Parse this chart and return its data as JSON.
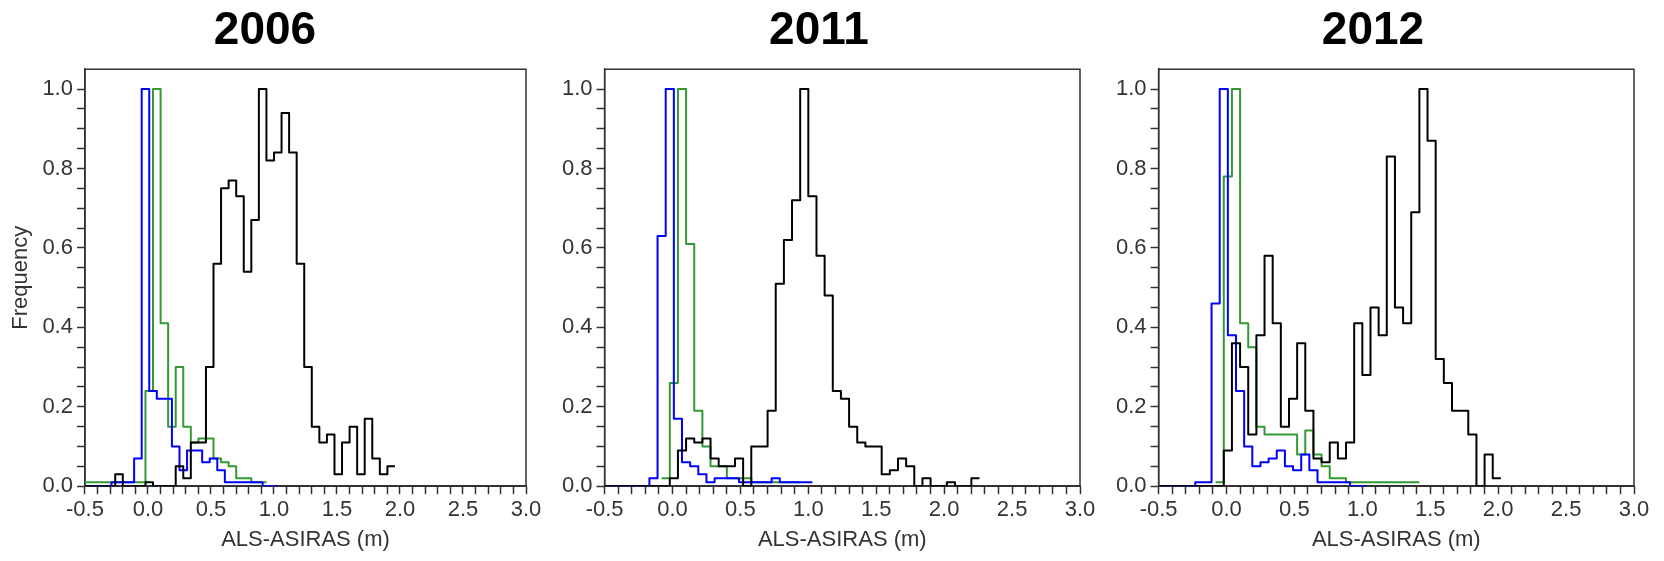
{
  "chart_data": [
    {
      "type": "histogram",
      "title": "2006",
      "xlabel": "ALS-ASIRAS (m)",
      "ylabel": "Frequency",
      "xlim": [
        -0.5,
        3.0
      ],
      "ylim": [
        0,
        1.05
      ],
      "xticks": [
        {
          "value": -0.5,
          "label": "-0.5"
        },
        {
          "value": -0.4,
          "label": null
        },
        {
          "value": -0.3,
          "label": null
        },
        {
          "value": -0.2,
          "label": null
        },
        {
          "value": -0.1,
          "label": null
        },
        {
          "value": 0,
          "label": "0.0"
        },
        {
          "value": 0.1,
          "label": null
        },
        {
          "value": 0.2,
          "label": null
        },
        {
          "value": 0.3,
          "label": null
        },
        {
          "value": 0.4,
          "label": null
        },
        {
          "value": 0.5,
          "label": "0.5"
        },
        {
          "value": 0.6,
          "label": null
        },
        {
          "value": 0.7,
          "label": null
        },
        {
          "value": 0.8,
          "label": null
        },
        {
          "value": 0.9,
          "label": null
        },
        {
          "value": 1,
          "label": "1.0"
        },
        {
          "value": 1.1,
          "label": null
        },
        {
          "value": 1.2,
          "label": null
        },
        {
          "value": 1.3,
          "label": null
        },
        {
          "value": 1.4,
          "label": null
        },
        {
          "value": 1.5,
          "label": "1.5"
        },
        {
          "value": 1.6,
          "label": null
        },
        {
          "value": 1.7,
          "label": null
        },
        {
          "value": 1.8,
          "label": null
        },
        {
          "value": 1.9,
          "label": null
        },
        {
          "value": 2,
          "label": "2.0"
        },
        {
          "value": 2.1,
          "label": null
        },
        {
          "value": 2.2,
          "label": null
        },
        {
          "value": 2.3,
          "label": null
        },
        {
          "value": 2.4,
          "label": null
        },
        {
          "value": 2.5,
          "label": "2.5"
        },
        {
          "value": 2.6,
          "label": null
        },
        {
          "value": 2.7,
          "label": null
        },
        {
          "value": 2.8,
          "label": null
        },
        {
          "value": 2.9,
          "label": null
        },
        {
          "value": 3,
          "label": "3.0"
        }
      ],
      "yticks": [
        {
          "value": 0,
          "label": "0.0"
        },
        {
          "value": 0.05,
          "label": null
        },
        {
          "value": 0.1,
          "label": null
        },
        {
          "value": 0.15,
          "label": null
        },
        {
          "value": 0.2,
          "label": "0.2"
        },
        {
          "value": 0.25,
          "label": null
        },
        {
          "value": 0.3,
          "label": null
        },
        {
          "value": 0.35,
          "label": null
        },
        {
          "value": 0.4,
          "label": "0.4"
        },
        {
          "value": 0.45,
          "label": null
        },
        {
          "value": 0.5,
          "label": null
        },
        {
          "value": 0.55,
          "label": null
        },
        {
          "value": 0.6,
          "label": "0.6"
        },
        {
          "value": 0.65,
          "label": null
        },
        {
          "value": 0.7,
          "label": null
        },
        {
          "value": 0.75,
          "label": null
        },
        {
          "value": 0.8,
          "label": "0.8"
        },
        {
          "value": 0.85,
          "label": null
        },
        {
          "value": 0.9,
          "label": null
        },
        {
          "value": 0.95,
          "label": null
        },
        {
          "value": 1,
          "label": "1.0"
        }
      ],
      "bins": [
        -0.5,
        -0.44,
        -0.38,
        -0.32,
        -0.26,
        -0.2,
        -0.14,
        -0.08,
        -0.02,
        0.04,
        0.1,
        0.16,
        0.22,
        0.28,
        0.34,
        0.4,
        0.46,
        0.52,
        0.58,
        0.64,
        0.7,
        0.76,
        0.82,
        0.88,
        0.94,
        1.0,
        1.06,
        1.12,
        1.18,
        1.24,
        1.3,
        1.36,
        1.42,
        1.48,
        1.54,
        1.6,
        1.66,
        1.72,
        1.78,
        1.84,
        1.9,
        1.96
      ],
      "series": [
        {
          "color": "#000000",
          "values": [
            0,
            0,
            0,
            0,
            0.03,
            0,
            0,
            0,
            0.01,
            0,
            0,
            0,
            0.05,
            0.02,
            0.11,
            0.11,
            0.3,
            0.56,
            0.75,
            0.77,
            0.73,
            0.54,
            0.67,
            1.0,
            0.82,
            0.84,
            0.94,
            0.84,
            0.56,
            0.3,
            0.15,
            0.11,
            0.13,
            0.03,
            0.11,
            0.15,
            0.03,
            0.17,
            0.07,
            0.03,
            0.05
          ]
        },
        {
          "color": "#0000ff",
          "bins": [
            -0.47,
            -0.41,
            -0.35,
            -0.29,
            -0.23,
            -0.17,
            -0.11,
            -0.05,
            0.01,
            0.07,
            0.13,
            0.19,
            0.25,
            0.31,
            0.37,
            0.43,
            0.49,
            0.55,
            0.61,
            0.67,
            0.73,
            0.79,
            0.85,
            0.91,
            0.97,
            1.03
          ],
          "values": [
            0,
            0,
            0,
            0.01,
            0.01,
            0.01,
            0.07,
            1.0,
            0.24,
            0.22,
            0.22,
            0.1,
            0.04,
            0.09,
            0.09,
            0.06,
            0.07,
            0.04,
            0.01,
            0.01,
            0.01,
            0.01,
            0.01,
            0,
            0
          ]
        },
        {
          "color": "#339933",
          "bins": [
            -0.5,
            -0.44,
            -0.38,
            -0.32,
            -0.26,
            -0.2,
            -0.14,
            -0.08,
            -0.02,
            0.04,
            0.1,
            0.16,
            0.22,
            0.28,
            0.34,
            0.4,
            0.46,
            0.52,
            0.58,
            0.64,
            0.7,
            0.76,
            0.82,
            0.88,
            0.94
          ],
          "values": [
            0.01,
            0.01,
            0.01,
            0.01,
            0.01,
            0.01,
            0.01,
            0.01,
            0.24,
            1.0,
            0.41,
            0.15,
            0.3,
            0.15,
            0.11,
            0.12,
            0.12,
            0.07,
            0.06,
            0.05,
            0.02,
            0.02,
            0.01,
            0.01
          ]
        }
      ]
    },
    {
      "type": "histogram",
      "title": "2011",
      "xlabel": "ALS-ASIRAS (m)",
      "xlim": [
        -0.5,
        3.0
      ],
      "ylim": [
        0,
        1.05
      ],
      "xticks": [
        {
          "value": -0.5,
          "label": "-0.5"
        },
        {
          "value": -0.4,
          "label": null
        },
        {
          "value": -0.3,
          "label": null
        },
        {
          "value": -0.2,
          "label": null
        },
        {
          "value": -0.1,
          "label": null
        },
        {
          "value": 0,
          "label": "0.0"
        },
        {
          "value": 0.1,
          "label": null
        },
        {
          "value": 0.2,
          "label": null
        },
        {
          "value": 0.3,
          "label": null
        },
        {
          "value": 0.4,
          "label": null
        },
        {
          "value": 0.5,
          "label": "0.5"
        },
        {
          "value": 0.6,
          "label": null
        },
        {
          "value": 0.7,
          "label": null
        },
        {
          "value": 0.8,
          "label": null
        },
        {
          "value": 0.9,
          "label": null
        },
        {
          "value": 1,
          "label": "1.0"
        },
        {
          "value": 1.1,
          "label": null
        },
        {
          "value": 1.2,
          "label": null
        },
        {
          "value": 1.3,
          "label": null
        },
        {
          "value": 1.4,
          "label": null
        },
        {
          "value": 1.5,
          "label": "1.5"
        },
        {
          "value": 1.6,
          "label": null
        },
        {
          "value": 1.7,
          "label": null
        },
        {
          "value": 1.8,
          "label": null
        },
        {
          "value": 1.9,
          "label": null
        },
        {
          "value": 2,
          "label": "2.0"
        },
        {
          "value": 2.1,
          "label": null
        },
        {
          "value": 2.2,
          "label": null
        },
        {
          "value": 2.3,
          "label": null
        },
        {
          "value": 2.4,
          "label": null
        },
        {
          "value": 2.5,
          "label": "2.5"
        },
        {
          "value": 2.6,
          "label": null
        },
        {
          "value": 2.7,
          "label": null
        },
        {
          "value": 2.8,
          "label": null
        },
        {
          "value": 2.9,
          "label": null
        },
        {
          "value": 3,
          "label": "3.0"
        }
      ],
      "yticks": [
        {
          "value": 0,
          "label": "0.0"
        },
        {
          "value": 0.05,
          "label": null
        },
        {
          "value": 0.1,
          "label": null
        },
        {
          "value": 0.15,
          "label": null
        },
        {
          "value": 0.2,
          "label": "0.2"
        },
        {
          "value": 0.25,
          "label": null
        },
        {
          "value": 0.3,
          "label": null
        },
        {
          "value": 0.35,
          "label": null
        },
        {
          "value": 0.4,
          "label": "0.4"
        },
        {
          "value": 0.45,
          "label": null
        },
        {
          "value": 0.5,
          "label": null
        },
        {
          "value": 0.55,
          "label": null
        },
        {
          "value": 0.6,
          "label": "0.6"
        },
        {
          "value": 0.65,
          "label": null
        },
        {
          "value": 0.7,
          "label": null
        },
        {
          "value": 0.75,
          "label": null
        },
        {
          "value": 0.8,
          "label": "0.8"
        },
        {
          "value": 0.85,
          "label": null
        },
        {
          "value": 0.9,
          "label": null
        },
        {
          "value": 0.95,
          "label": null
        },
        {
          "value": 1,
          "label": "1.0"
        }
      ],
      "bins": [
        -0.5,
        -0.44,
        -0.38,
        -0.32,
        -0.26,
        -0.2,
        -0.14,
        -0.08,
        -0.02,
        0.04,
        0.1,
        0.16,
        0.22,
        0.28,
        0.34,
        0.4,
        0.46,
        0.52,
        0.58,
        0.64,
        0.7,
        0.76,
        0.82,
        0.88,
        0.94,
        1.0,
        1.06,
        1.12,
        1.18,
        1.24,
        1.3,
        1.36,
        1.42,
        1.48,
        1.54,
        1.6,
        1.66,
        1.72,
        1.78,
        1.84,
        1.9,
        1.96,
        2.02,
        2.08,
        2.14,
        2.2,
        2.26
      ],
      "series": [
        {
          "color": "#000000",
          "values": [
            0,
            0,
            0,
            0,
            0,
            0,
            0,
            0,
            0.02,
            0.09,
            0.12,
            0.11,
            0.12,
            0.07,
            0.05,
            0.05,
            0.07,
            0,
            0.1,
            0.1,
            0.19,
            0.51,
            0.62,
            0.72,
            1.0,
            0.73,
            0.58,
            0.48,
            0.24,
            0.22,
            0.15,
            0.11,
            0.1,
            0.1,
            0.03,
            0.04,
            0.07,
            0.05,
            0,
            0.02,
            0,
            0,
            0.01,
            0,
            0,
            0.02
          ]
        },
        {
          "color": "#0000ff",
          "bins": [
            -0.47,
            -0.41,
            -0.35,
            -0.29,
            -0.23,
            -0.17,
            -0.11,
            -0.05,
            0.01,
            0.07,
            0.13,
            0.19,
            0.25,
            0.31,
            0.37,
            0.43,
            0.49,
            0.55,
            0.61,
            0.67,
            0.73,
            0.79,
            0.85,
            0.91,
            0.97,
            1.03
          ],
          "values": [
            0,
            0,
            0,
            0,
            0,
            0.02,
            0.63,
            1.0,
            0.17,
            0.06,
            0.05,
            0.03,
            0.01,
            0.02,
            0.02,
            0.02,
            0.01,
            0.01,
            0.01,
            0.01,
            0.02,
            0.01,
            0.01,
            0.01,
            0.01
          ]
        },
        {
          "color": "#339933",
          "bins": [
            -0.08,
            -0.02,
            0.04,
            0.1,
            0.16,
            0.22,
            0.28,
            0.34,
            0.4,
            0.46,
            0.52,
            0.58,
            0.64,
            0.7,
            0.76,
            0.82,
            0.88,
            0.94
          ],
          "values": [
            0.02,
            0.26,
            1.0,
            0.61,
            0.19,
            0.1,
            0.05,
            0.05,
            0.02,
            0.02,
            0.02,
            0.01,
            0.01,
            0.01,
            0.01,
            0.01,
            0.01
          ]
        }
      ]
    },
    {
      "type": "histogram",
      "title": "2012",
      "xlabel": "ALS-ASIRAS (m)",
      "xlim": [
        -0.5,
        3.0
      ],
      "ylim": [
        0,
        1.05
      ],
      "xticks": [
        {
          "value": -0.5,
          "label": "-0.5"
        },
        {
          "value": -0.4,
          "label": null
        },
        {
          "value": -0.3,
          "label": null
        },
        {
          "value": -0.2,
          "label": null
        },
        {
          "value": -0.1,
          "label": null
        },
        {
          "value": 0,
          "label": "0.0"
        },
        {
          "value": 0.1,
          "label": null
        },
        {
          "value": 0.2,
          "label": null
        },
        {
          "value": 0.3,
          "label": null
        },
        {
          "value": 0.4,
          "label": null
        },
        {
          "value": 0.5,
          "label": "0.5"
        },
        {
          "value": 0.6,
          "label": null
        },
        {
          "value": 0.7,
          "label": null
        },
        {
          "value": 0.8,
          "label": null
        },
        {
          "value": 0.9,
          "label": null
        },
        {
          "value": 1,
          "label": "1.0"
        },
        {
          "value": 1.1,
          "label": null
        },
        {
          "value": 1.2,
          "label": null
        },
        {
          "value": 1.3,
          "label": null
        },
        {
          "value": 1.4,
          "label": null
        },
        {
          "value": 1.5,
          "label": "1.5"
        },
        {
          "value": 1.6,
          "label": null
        },
        {
          "value": 1.7,
          "label": null
        },
        {
          "value": 1.8,
          "label": null
        },
        {
          "value": 1.9,
          "label": null
        },
        {
          "value": 2,
          "label": "2.0"
        },
        {
          "value": 2.1,
          "label": null
        },
        {
          "value": 2.2,
          "label": null
        },
        {
          "value": 2.3,
          "label": null
        },
        {
          "value": 2.4,
          "label": null
        },
        {
          "value": 2.5,
          "label": "2.5"
        },
        {
          "value": 2.6,
          "label": null
        },
        {
          "value": 2.7,
          "label": null
        },
        {
          "value": 2.8,
          "label": null
        },
        {
          "value": 2.9,
          "label": null
        },
        {
          "value": 3,
          "label": "3.0"
        }
      ],
      "yticks": [
        {
          "value": 0,
          "label": "0.0"
        },
        {
          "value": 0.05,
          "label": null
        },
        {
          "value": 0.1,
          "label": null
        },
        {
          "value": 0.15,
          "label": null
        },
        {
          "value": 0.2,
          "label": "0.2"
        },
        {
          "value": 0.25,
          "label": null
        },
        {
          "value": 0.3,
          "label": null
        },
        {
          "value": 0.35,
          "label": null
        },
        {
          "value": 0.4,
          "label": "0.4"
        },
        {
          "value": 0.45,
          "label": null
        },
        {
          "value": 0.5,
          "label": null
        },
        {
          "value": 0.55,
          "label": null
        },
        {
          "value": 0.6,
          "label": "0.6"
        },
        {
          "value": 0.65,
          "label": null
        },
        {
          "value": 0.7,
          "label": null
        },
        {
          "value": 0.75,
          "label": null
        },
        {
          "value": 0.8,
          "label": "0.8"
        },
        {
          "value": 0.85,
          "label": null
        },
        {
          "value": 0.9,
          "label": null
        },
        {
          "value": 0.95,
          "label": null
        },
        {
          "value": 1,
          "label": "1.0"
        }
      ],
      "bins": [
        -0.5,
        -0.44,
        -0.38,
        -0.32,
        -0.26,
        -0.2,
        -0.14,
        -0.08,
        -0.02,
        0.04,
        0.1,
        0.16,
        0.22,
        0.28,
        0.34,
        0.4,
        0.46,
        0.52,
        0.58,
        0.64,
        0.7,
        0.76,
        0.82,
        0.88,
        0.94,
        1.0,
        1.06,
        1.12,
        1.18,
        1.24,
        1.3,
        1.36,
        1.42,
        1.48,
        1.54,
        1.6,
        1.66,
        1.72,
        1.78,
        1.84,
        1.9,
        1.96,
        2.02
      ],
      "series": [
        {
          "color": "#000000",
          "values": [
            0,
            0,
            0,
            0,
            0,
            0,
            0,
            0,
            0.09,
            0.36,
            0.3,
            0.13,
            0.38,
            0.58,
            0.41,
            0.15,
            0.22,
            0.36,
            0.19,
            0.07,
            0.06,
            0.11,
            0.07,
            0.11,
            0.41,
            0.28,
            0.45,
            0.38,
            0.83,
            0.45,
            0.41,
            0.69,
            1.0,
            0.87,
            0.32,
            0.26,
            0.19,
            0.19,
            0.13,
            0,
            0.08,
            0.02
          ]
        },
        {
          "color": "#0000ff",
          "bins": [
            -0.47,
            -0.41,
            -0.35,
            -0.29,
            -0.23,
            -0.17,
            -0.11,
            -0.05,
            0.01,
            0.07,
            0.13,
            0.19,
            0.25,
            0.31,
            0.37,
            0.43,
            0.49,
            0.55,
            0.61,
            0.67,
            0.73,
            0.79,
            0.85,
            0.91,
            0.97,
            1.03
          ],
          "values": [
            0,
            0,
            0,
            0,
            0.01,
            0.01,
            0.46,
            1.0,
            0.38,
            0.24,
            0.1,
            0.05,
            0.06,
            0.07,
            0.09,
            0.05,
            0.04,
            0.08,
            0.04,
            0.01,
            0.01,
            0.01,
            0.01,
            0,
            0
          ]
        },
        {
          "color": "#339933",
          "bins": [
            -0.08,
            -0.02,
            0.04,
            0.1,
            0.16,
            0.22,
            0.28,
            0.34,
            0.4,
            0.46,
            0.52,
            0.58,
            0.64,
            0.7,
            0.76,
            0.82,
            0.88,
            0.94,
            1.0,
            1.06,
            1.12,
            1.18,
            1.24,
            1.3,
            1.36,
            1.42
          ],
          "values": [
            0.01,
            0.78,
            1.0,
            0.41,
            0.35,
            0.15,
            0.13,
            0.13,
            0.13,
            0.13,
            0.08,
            0.14,
            0.08,
            0.05,
            0.02,
            0.02,
            0.01,
            0.01,
            0.01,
            0.01,
            0.01,
            0.01,
            0.01,
            0.01,
            0.01
          ]
        }
      ]
    }
  ]
}
